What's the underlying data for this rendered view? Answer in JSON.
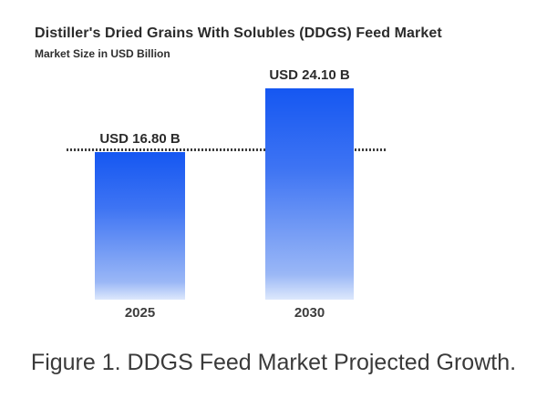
{
  "figure": {
    "caption": "Figure 1. DDGS Feed Market Projected Growth."
  },
  "chart_data": {
    "type": "bar",
    "title": "Distiller's Dried Grains With Solubles (DDGS) Feed Market",
    "subtitle": "Market Size in USD Billion",
    "unit": "USD Billion",
    "categories": [
      "2025",
      "2030"
    ],
    "values": [
      16.8,
      24.1
    ],
    "value_labels": [
      "USD 16.80 B",
      "USD 24.10 B"
    ],
    "ylim": [
      0,
      24.1
    ],
    "grid": false,
    "legend": false,
    "reference_line": {
      "value": 16.8,
      "style": "dotted",
      "note": "horizontal dotted line aligned with top of 2025 bar"
    },
    "colors": {
      "bar_top": "#1557f2",
      "bar_mid": "#3e74f3",
      "bar_low": "#9ab7f6",
      "bar_bottom": "#dde8fc",
      "dotted_line": "#3c3c3c",
      "title_text": "#2b2b2b",
      "caption_text": "#3a3a3a",
      "background": "#ffffff"
    }
  }
}
